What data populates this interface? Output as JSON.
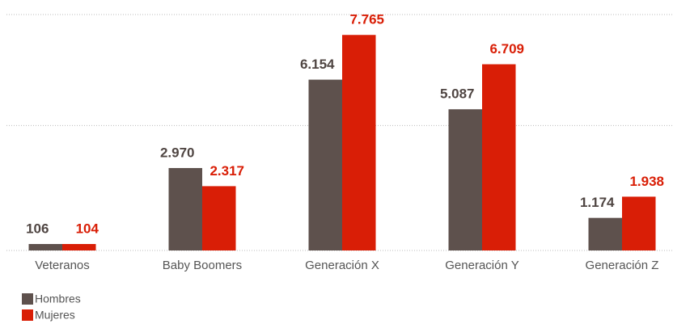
{
  "chart_data": {
    "type": "bar",
    "categories": [
      "Veteranos",
      "Baby Boomers",
      "Generación X",
      "Generación Y",
      "Generación Z"
    ],
    "series": [
      {
        "name": "Hombres",
        "color": "#5e514d",
        "values": [
          106,
          2970,
          6154,
          5087,
          1174
        ],
        "value_labels": [
          "106",
          "2.970",
          "6.154",
          "5.087",
          "1.174"
        ]
      },
      {
        "name": "Mujeres",
        "color": "#d91e06",
        "values": [
          104,
          2317,
          7765,
          6709,
          1938
        ],
        "value_labels": [
          "104",
          "2.317",
          "7.765",
          "6.709",
          "1.938"
        ]
      }
    ],
    "ylim": [
      0,
      8500
    ],
    "yticks": [
      0,
      4500,
      8500
    ],
    "grid": true
  }
}
